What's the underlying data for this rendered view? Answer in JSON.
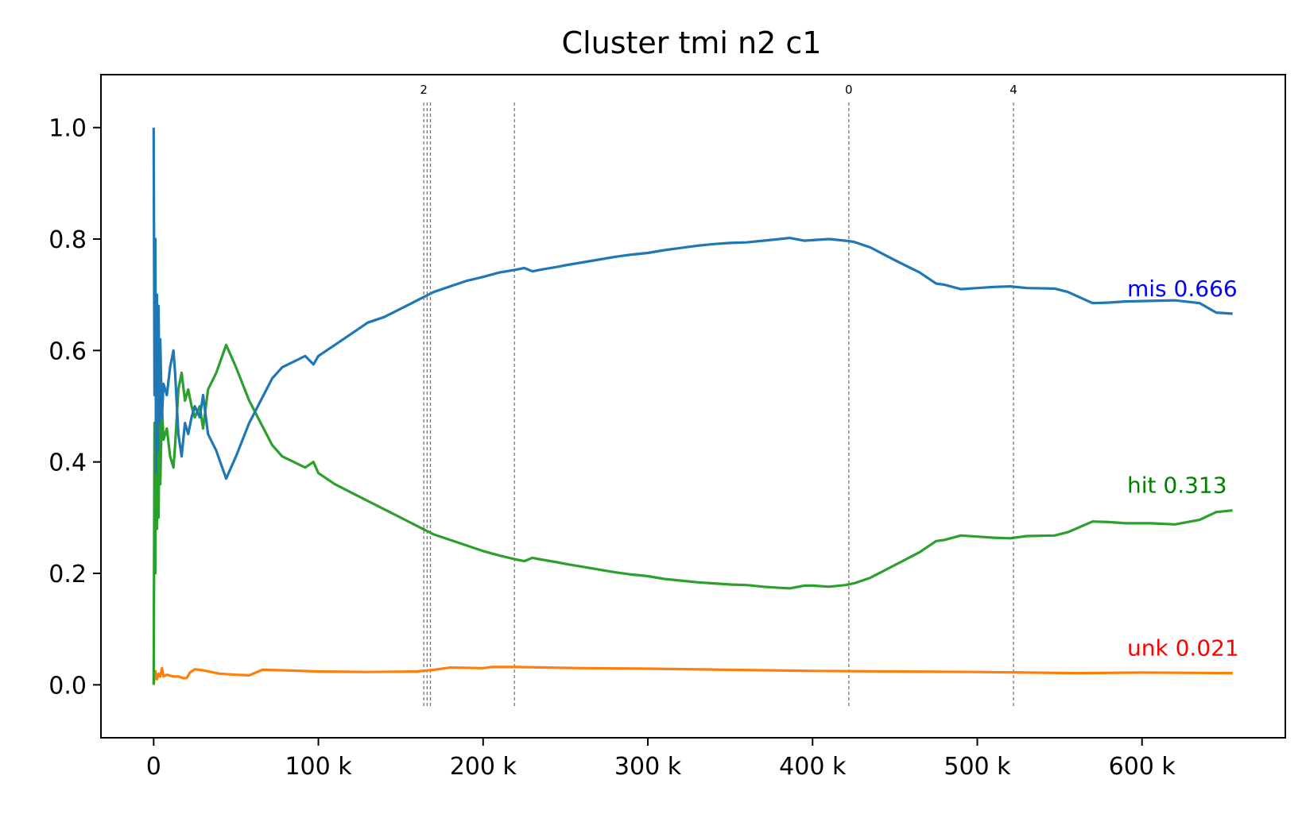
{
  "chart_data": {
    "type": "line",
    "title": "Cluster tmi n2 c1",
    "xlabel": "",
    "ylabel": "",
    "xlim": [
      -32000,
      687000
    ],
    "ylim": [
      -0.095,
      1.095
    ],
    "grid": false,
    "x_ticks": [
      {
        "value": 0,
        "label": "0"
      },
      {
        "value": 100000,
        "label": "100 k"
      },
      {
        "value": 200000,
        "label": "200 k"
      },
      {
        "value": 300000,
        "label": "300 k"
      },
      {
        "value": 400000,
        "label": "400 k"
      },
      {
        "value": 500000,
        "label": "500 k"
      },
      {
        "value": 600000,
        "label": "600 k"
      }
    ],
    "y_ticks": [
      {
        "value": 0.0,
        "label": "0.0"
      },
      {
        "value": 0.2,
        "label": "0.2"
      },
      {
        "value": 0.4,
        "label": "0.4"
      },
      {
        "value": 0.6,
        "label": "0.6"
      },
      {
        "value": 0.8,
        "label": "0.8"
      },
      {
        "value": 1.0,
        "label": "1.0"
      }
    ],
    "vertical_lines": [
      {
        "x": 164000,
        "label": "2"
      },
      {
        "x": 166000,
        "label": ""
      },
      {
        "x": 168000,
        "label": ""
      },
      {
        "x": 219000,
        "label": ""
      },
      {
        "x": 422000,
        "label": "0"
      },
      {
        "x": 522000,
        "label": "4"
      }
    ],
    "series": [
      {
        "name": "mis",
        "color": "#1f77b4",
        "end_label": "mis 0.666",
        "end_label_color": "#0000ff",
        "x": [
          0,
          500,
          1000,
          1500,
          2000,
          2500,
          3000,
          3500,
          4000,
          5000,
          6000,
          8000,
          10000,
          12000,
          13000,
          15000,
          17000,
          19000,
          21000,
          23000,
          25000,
          28000,
          30000,
          33000,
          38000,
          44000,
          50000,
          58000,
          65000,
          72000,
          78000,
          85000,
          92000,
          97000,
          100000,
          110000,
          120000,
          130000,
          140000,
          150000,
          160000,
          170000,
          180000,
          190000,
          200000,
          210000,
          220000,
          225000,
          230000,
          235000,
          245000,
          250000,
          260000,
          270000,
          280000,
          290000,
          300000,
          310000,
          320000,
          330000,
          340000,
          350000,
          360000,
          370000,
          380000,
          386000,
          395000,
          400000,
          410000,
          420000,
          425000,
          435000,
          450000,
          465000,
          475000,
          480000,
          490000,
          500000,
          510000,
          520000,
          530000,
          547000,
          555000,
          570000,
          580000,
          590000,
          605000,
          620000,
          635000,
          645000,
          655000
        ],
        "values": [
          1.0,
          0.52,
          0.8,
          0.38,
          0.7,
          0.42,
          0.68,
          0.47,
          0.62,
          0.48,
          0.54,
          0.52,
          0.57,
          0.6,
          0.56,
          0.45,
          0.41,
          0.47,
          0.45,
          0.48,
          0.5,
          0.48,
          0.52,
          0.45,
          0.42,
          0.37,
          0.41,
          0.47,
          0.51,
          0.55,
          0.57,
          0.58,
          0.59,
          0.575,
          0.59,
          0.61,
          0.63,
          0.65,
          0.66,
          0.675,
          0.69,
          0.705,
          0.715,
          0.725,
          0.732,
          0.74,
          0.745,
          0.748,
          0.742,
          0.745,
          0.75,
          0.753,
          0.758,
          0.763,
          0.768,
          0.772,
          0.775,
          0.78,
          0.784,
          0.788,
          0.791,
          0.793,
          0.794,
          0.797,
          0.8,
          0.802,
          0.797,
          0.798,
          0.8,
          0.797,
          0.795,
          0.785,
          0.762,
          0.74,
          0.72,
          0.718,
          0.71,
          0.712,
          0.714,
          0.715,
          0.712,
          0.711,
          0.705,
          0.685,
          0.686,
          0.688,
          0.689,
          0.69,
          0.685,
          0.668,
          0.666
        ]
      },
      {
        "name": "hit",
        "color": "#2ca02c",
        "end_label": "hit 0.313",
        "end_label_color": "#008000",
        "x": [
          0,
          500,
          1000,
          1500,
          2000,
          2500,
          3000,
          3500,
          4000,
          5000,
          6000,
          8000,
          10000,
          12000,
          13000,
          15000,
          17000,
          19000,
          21000,
          23000,
          25000,
          28000,
          30000,
          33000,
          38000,
          44000,
          50000,
          58000,
          65000,
          72000,
          78000,
          85000,
          92000,
          97000,
          100000,
          110000,
          120000,
          130000,
          140000,
          150000,
          160000,
          170000,
          180000,
          190000,
          200000,
          210000,
          220000,
          225000,
          230000,
          235000,
          245000,
          250000,
          260000,
          270000,
          280000,
          290000,
          300000,
          310000,
          320000,
          330000,
          340000,
          350000,
          360000,
          370000,
          380000,
          386000,
          395000,
          400000,
          410000,
          420000,
          425000,
          435000,
          450000,
          465000,
          475000,
          480000,
          490000,
          500000,
          510000,
          520000,
          530000,
          547000,
          555000,
          570000,
          580000,
          590000,
          605000,
          620000,
          635000,
          645000,
          655000
        ],
        "values": [
          0.0,
          0.47,
          0.2,
          0.6,
          0.28,
          0.55,
          0.3,
          0.51,
          0.36,
          0.5,
          0.44,
          0.46,
          0.41,
          0.39,
          0.43,
          0.53,
          0.56,
          0.51,
          0.53,
          0.5,
          0.48,
          0.5,
          0.46,
          0.53,
          0.56,
          0.61,
          0.57,
          0.51,
          0.47,
          0.43,
          0.41,
          0.4,
          0.39,
          0.4,
          0.38,
          0.36,
          0.345,
          0.33,
          0.315,
          0.3,
          0.285,
          0.27,
          0.26,
          0.25,
          0.24,
          0.232,
          0.225,
          0.222,
          0.228,
          0.225,
          0.22,
          0.217,
          0.212,
          0.207,
          0.202,
          0.198,
          0.195,
          0.19,
          0.187,
          0.184,
          0.182,
          0.18,
          0.179,
          0.176,
          0.174,
          0.173,
          0.178,
          0.178,
          0.176,
          0.179,
          0.182,
          0.192,
          0.215,
          0.238,
          0.258,
          0.26,
          0.268,
          0.266,
          0.264,
          0.263,
          0.267,
          0.268,
          0.274,
          0.293,
          0.292,
          0.29,
          0.29,
          0.288,
          0.296,
          0.31,
          0.313
        ]
      },
      {
        "name": "unk",
        "color": "#ff7f0e",
        "end_label": "unk 0.021",
        "end_label_color": "#ff0000",
        "x": [
          0,
          1000,
          2000,
          3000,
          4000,
          5000,
          6000,
          8000,
          12000,
          15000,
          18000,
          20000,
          22000,
          25000,
          30000,
          40000,
          50000,
          58000,
          62000,
          66000,
          80000,
          100000,
          130000,
          160000,
          170000,
          180000,
          200000,
          205000,
          220000,
          240000,
          260000,
          300000,
          400000,
          500000,
          560000,
          600000,
          655000
        ],
        "values": [
          0.0,
          0.025,
          0.01,
          0.02,
          0.015,
          0.03,
          0.015,
          0.018,
          0.015,
          0.015,
          0.012,
          0.012,
          0.022,
          0.028,
          0.026,
          0.02,
          0.018,
          0.017,
          0.022,
          0.027,
          0.026,
          0.024,
          0.023,
          0.024,
          0.027,
          0.031,
          0.03,
          0.032,
          0.032,
          0.031,
          0.03,
          0.029,
          0.025,
          0.023,
          0.021,
          0.022,
          0.021
        ]
      }
    ]
  }
}
